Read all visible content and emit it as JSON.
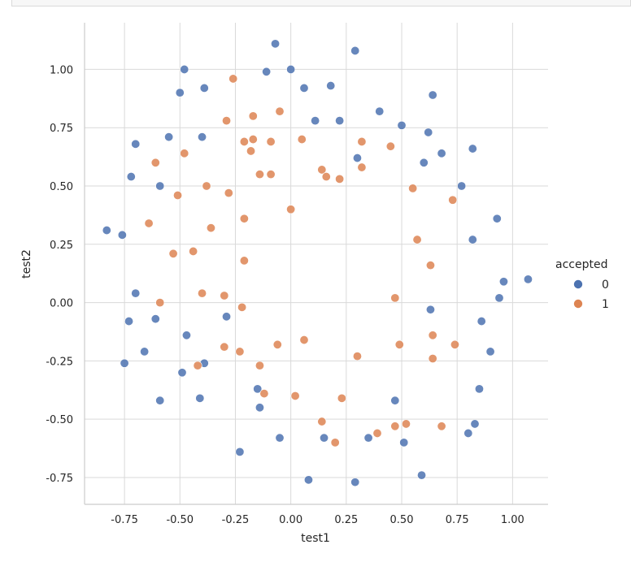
{
  "chart_data": {
    "type": "scatter",
    "title": "",
    "xlabel": "test1",
    "ylabel": "test2",
    "xlim": [
      -0.93,
      1.16
    ],
    "ylim": [
      -0.865,
      1.2
    ],
    "xticks": [
      -0.75,
      -0.5,
      -0.25,
      0.0,
      0.25,
      0.5,
      0.75,
      1.0
    ],
    "xtick_labels": [
      "-0.75",
      "-0.50",
      "-0.25",
      "0.00",
      "0.25",
      "0.50",
      "0.75",
      "1.00"
    ],
    "yticks": [
      -0.75,
      -0.5,
      -0.25,
      0.0,
      0.25,
      0.5,
      0.75,
      1.0
    ],
    "ytick_labels": [
      "-0.75",
      "-0.50",
      "-0.25",
      "0.00",
      "0.25",
      "0.50",
      "0.75",
      "1.00"
    ],
    "grid": true,
    "legend": {
      "title": "accepted",
      "placement": "right",
      "entries": [
        {
          "label": "0",
          "color": "#4c72b0"
        },
        {
          "label": "1",
          "color": "#dd8452"
        }
      ]
    },
    "series": [
      {
        "name": "0",
        "color": "#4c72b0",
        "points": [
          [
            -0.83,
            0.31
          ],
          [
            -0.76,
            0.29
          ],
          [
            -0.72,
            0.54
          ],
          [
            -0.7,
            0.68
          ],
          [
            -0.59,
            0.5
          ],
          [
            -0.55,
            0.71
          ],
          [
            -0.5,
            0.9
          ],
          [
            -0.48,
            1.0
          ],
          [
            -0.39,
            0.92
          ],
          [
            -0.4,
            0.71
          ],
          [
            -0.7,
            0.04
          ],
          [
            -0.73,
            -0.08
          ],
          [
            -0.61,
            -0.07
          ],
          [
            -0.66,
            -0.21
          ],
          [
            -0.75,
            -0.26
          ],
          [
            -0.59,
            -0.42
          ],
          [
            -0.49,
            -0.3
          ],
          [
            -0.47,
            -0.14
          ],
          [
            -0.39,
            -0.26
          ],
          [
            -0.41,
            -0.41
          ],
          [
            -0.29,
            -0.06
          ],
          [
            -0.23,
            -0.64
          ],
          [
            -0.15,
            -0.37
          ],
          [
            -0.14,
            -0.45
          ],
          [
            -0.05,
            -0.58
          ],
          [
            -0.07,
            1.11
          ],
          [
            -0.11,
            0.99
          ],
          [
            0.0,
            1.0
          ],
          [
            0.06,
            0.92
          ],
          [
            0.18,
            0.93
          ],
          [
            0.29,
            1.08
          ],
          [
            0.4,
            0.82
          ],
          [
            0.5,
            0.76
          ],
          [
            0.11,
            0.78
          ],
          [
            0.22,
            0.78
          ],
          [
            0.3,
            0.62
          ],
          [
            0.64,
            0.89
          ],
          [
            0.62,
            0.73
          ],
          [
            0.68,
            0.64
          ],
          [
            0.6,
            0.6
          ],
          [
            0.77,
            0.5
          ],
          [
            0.82,
            0.66
          ],
          [
            0.93,
            0.36
          ],
          [
            0.82,
            0.27
          ],
          [
            0.96,
            0.09
          ],
          [
            0.94,
            0.02
          ],
          [
            1.07,
            0.1
          ],
          [
            0.63,
            -0.03
          ],
          [
            0.86,
            -0.08
          ],
          [
            0.9,
            -0.21
          ],
          [
            0.85,
            -0.37
          ],
          [
            0.83,
            -0.52
          ],
          [
            0.8,
            -0.56
          ],
          [
            0.47,
            -0.42
          ],
          [
            0.51,
            -0.6
          ],
          [
            0.35,
            -0.58
          ],
          [
            0.15,
            -0.58
          ],
          [
            0.08,
            -0.76
          ],
          [
            0.29,
            -0.77
          ],
          [
            0.59,
            -0.74
          ]
        ]
      },
      {
        "name": "1",
        "color": "#dd8452",
        "points": [
          [
            -0.26,
            0.96
          ],
          [
            -0.29,
            0.78
          ],
          [
            -0.17,
            0.8
          ],
          [
            -0.05,
            0.82
          ],
          [
            -0.48,
            0.64
          ],
          [
            -0.61,
            0.6
          ],
          [
            -0.51,
            0.46
          ],
          [
            -0.38,
            0.5
          ],
          [
            -0.28,
            0.47
          ],
          [
            -0.21,
            0.69
          ],
          [
            -0.17,
            0.7
          ],
          [
            -0.18,
            0.65
          ],
          [
            -0.09,
            0.69
          ],
          [
            -0.14,
            0.55
          ],
          [
            -0.09,
            0.55
          ],
          [
            0.05,
            0.7
          ],
          [
            0.14,
            0.57
          ],
          [
            0.16,
            0.54
          ],
          [
            0.22,
            0.53
          ],
          [
            0.32,
            0.69
          ],
          [
            0.32,
            0.58
          ],
          [
            0.45,
            0.67
          ],
          [
            0.55,
            0.49
          ],
          [
            0.73,
            0.44
          ],
          [
            -0.64,
            0.34
          ],
          [
            -0.36,
            0.32
          ],
          [
            -0.21,
            0.36
          ],
          [
            0.0,
            0.4
          ],
          [
            -0.53,
            0.21
          ],
          [
            -0.44,
            0.22
          ],
          [
            -0.21,
            0.18
          ],
          [
            0.57,
            0.27
          ],
          [
            0.63,
            0.16
          ],
          [
            -0.59,
            0.0
          ],
          [
            -0.4,
            0.04
          ],
          [
            -0.3,
            0.03
          ],
          [
            -0.22,
            -0.02
          ],
          [
            0.47,
            0.02
          ],
          [
            -0.3,
            -0.19
          ],
          [
            -0.23,
            -0.21
          ],
          [
            -0.06,
            -0.18
          ],
          [
            0.06,
            -0.16
          ],
          [
            0.3,
            -0.23
          ],
          [
            0.49,
            -0.18
          ],
          [
            0.64,
            -0.14
          ],
          [
            0.74,
            -0.18
          ],
          [
            0.64,
            -0.24
          ],
          [
            -0.42,
            -0.27
          ],
          [
            -0.14,
            -0.27
          ],
          [
            -0.12,
            -0.39
          ],
          [
            0.02,
            -0.4
          ],
          [
            0.23,
            -0.41
          ],
          [
            0.14,
            -0.51
          ],
          [
            0.2,
            -0.6
          ],
          [
            0.39,
            -0.56
          ],
          [
            0.47,
            -0.53
          ],
          [
            0.52,
            -0.52
          ],
          [
            0.68,
            -0.53
          ]
        ]
      }
    ]
  }
}
